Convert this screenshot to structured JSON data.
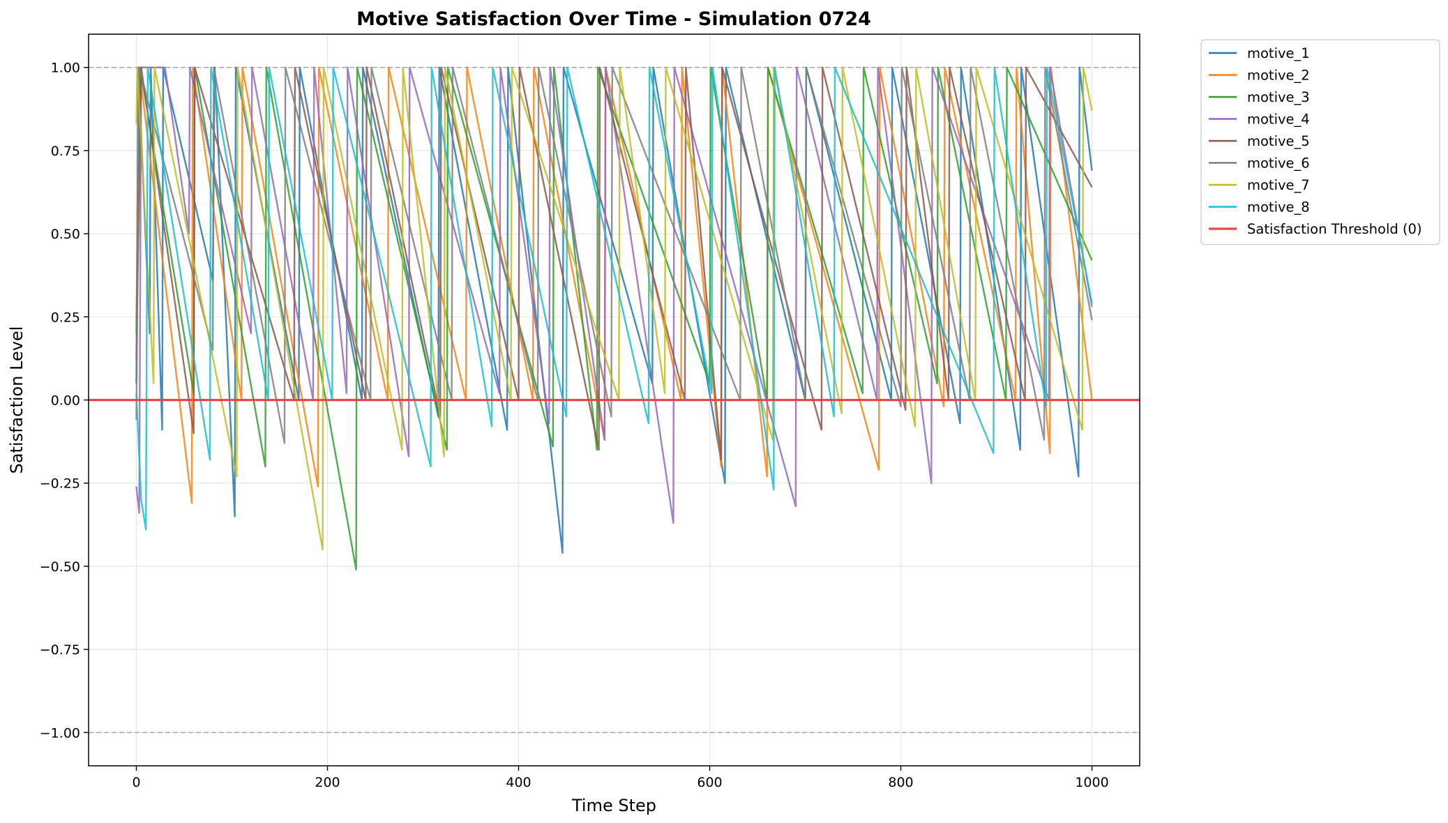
{
  "chart_data": {
    "type": "line",
    "title": "Motive Satisfaction Over Time - Simulation 0724",
    "xlabel": "Time Step",
    "ylabel": "Satisfaction Level",
    "xlim": [
      -50,
      1050
    ],
    "ylim": [
      -1.1,
      1.1
    ],
    "xticks": [
      0,
      200,
      400,
      600,
      800,
      1000
    ],
    "xtick_labels": [
      "0",
      "200",
      "400",
      "600",
      "800",
      "1000"
    ],
    "yticks": [
      1.0,
      0.75,
      0.5,
      0.25,
      0.0,
      -0.25,
      -0.5,
      -0.75,
      -1.0
    ],
    "ytick_labels": [
      "1.00",
      "0.75",
      "0.50",
      "0.25",
      "0.00",
      "−0.25",
      "−0.50",
      "−0.75",
      "−1.00"
    ],
    "grid": true,
    "legend_position": "outside-right-top",
    "reference_lines": [
      {
        "y": 1.0,
        "style": "dashed",
        "color": "#aaaaaa"
      },
      {
        "y": -1.0,
        "style": "dashed",
        "color": "#aaaaaa"
      }
    ],
    "threshold": {
      "name": "Satisfaction Threshold (0)",
      "y": 0,
      "color": "#e8474a"
    },
    "series": [
      {
        "name": "motive_1",
        "color": "#1f77b4",
        "points": [
          [
            0,
            0.05
          ],
          [
            2,
            1.0
          ],
          [
            14,
            0.2
          ],
          [
            15,
            1.0
          ],
          [
            27,
            -0.09
          ],
          [
            28,
            1.0
          ],
          [
            80,
            0.36
          ],
          [
            82,
            1.0
          ],
          [
            103,
            -0.35
          ],
          [
            104,
            1.0
          ],
          [
            170,
            0.0
          ],
          [
            171,
            1.0
          ],
          [
            236,
            0.0
          ],
          [
            237,
            1.0
          ],
          [
            316,
            -0.05
          ],
          [
            317,
            1.0
          ],
          [
            388,
            -0.09
          ],
          [
            389,
            1.0
          ],
          [
            446,
            -0.46
          ],
          [
            447,
            1.0
          ],
          [
            540,
            0.05
          ],
          [
            541,
            1.0
          ],
          [
            616,
            -0.25
          ],
          [
            617,
            1.0
          ],
          [
            700,
            0.0
          ],
          [
            701,
            1.0
          ],
          [
            790,
            0.0
          ],
          [
            791,
            1.0
          ],
          [
            862,
            -0.07
          ],
          [
            863,
            1.0
          ],
          [
            925,
            -0.15
          ],
          [
            926,
            1.0
          ],
          [
            986,
            -0.23
          ],
          [
            987,
            1.0
          ],
          [
            1000,
            0.69
          ]
        ]
      },
      {
        "name": "motive_2",
        "color": "#ff7f0e",
        "points": [
          [
            0,
            0.23
          ],
          [
            3,
            1.0
          ],
          [
            58,
            -0.31
          ],
          [
            59,
            1.0
          ],
          [
            110,
            0.0
          ],
          [
            111,
            1.0
          ],
          [
            190,
            -0.26
          ],
          [
            191,
            1.0
          ],
          [
            263,
            0.0
          ],
          [
            264,
            1.0
          ],
          [
            345,
            0.0
          ],
          [
            346,
            1.0
          ],
          [
            415,
            0.0
          ],
          [
            416,
            1.0
          ],
          [
            490,
            -0.12
          ],
          [
            491,
            1.0
          ],
          [
            570,
            0.0
          ],
          [
            571,
            1.0
          ],
          [
            612,
            -0.2
          ],
          [
            613,
            1.0
          ],
          [
            660,
            -0.23
          ],
          [
            661,
            1.0
          ],
          [
            777,
            -0.21
          ],
          [
            778,
            1.0
          ],
          [
            845,
            -0.02
          ],
          [
            846,
            1.0
          ],
          [
            920,
            0.0
          ],
          [
            921,
            1.0
          ],
          [
            956,
            -0.16
          ],
          [
            957,
            1.0
          ],
          [
            1000,
            0.0
          ]
        ]
      },
      {
        "name": "motive_3",
        "color": "#2ca02c",
        "points": [
          [
            0,
            0.2
          ],
          [
            4,
            1.0
          ],
          [
            60,
            0.02
          ],
          [
            61,
            1.0
          ],
          [
            135,
            -0.2
          ],
          [
            136,
            1.0
          ],
          [
            230,
            -0.51
          ],
          [
            231,
            1.0
          ],
          [
            325,
            -0.15
          ],
          [
            326,
            1.0
          ],
          [
            436,
            -0.14
          ],
          [
            437,
            1.0
          ],
          [
            482,
            -0.15
          ],
          [
            483,
            1.0
          ],
          [
            600,
            0.05
          ],
          [
            601,
            1.0
          ],
          [
            660,
            0.0
          ],
          [
            661,
            1.0
          ],
          [
            760,
            0.02
          ],
          [
            761,
            1.0
          ],
          [
            838,
            0.05
          ],
          [
            839,
            1.0
          ],
          [
            910,
            0.0
          ],
          [
            911,
            1.0
          ],
          [
            1000,
            0.42
          ]
        ]
      },
      {
        "name": "motive_4",
        "color": "#9467bd",
        "points": [
          [
            0,
            -0.26
          ],
          [
            3,
            -0.34
          ],
          [
            5,
            1.0
          ],
          [
            30,
            1.0
          ],
          [
            55,
            0.5
          ],
          [
            56,
            1.0
          ],
          [
            120,
            0.2
          ],
          [
            121,
            1.0
          ],
          [
            185,
            0.0
          ],
          [
            186,
            1.0
          ],
          [
            220,
            0.02
          ],
          [
            221,
            1.0
          ],
          [
            285,
            -0.17
          ],
          [
            286,
            1.0
          ],
          [
            380,
            0.02
          ],
          [
            381,
            1.0
          ],
          [
            432,
            -0.07
          ],
          [
            433,
            1.0
          ],
          [
            490,
            -0.12
          ],
          [
            491,
            1.0
          ],
          [
            562,
            -0.37
          ],
          [
            563,
            1.0
          ],
          [
            690,
            -0.32
          ],
          [
            691,
            1.0
          ],
          [
            775,
            0.0
          ],
          [
            776,
            1.0
          ],
          [
            832,
            -0.25
          ],
          [
            833,
            1.0
          ],
          [
            955,
            0.0
          ],
          [
            956,
            1.0
          ],
          [
            1000,
            0.28
          ]
        ]
      },
      {
        "name": "motive_5",
        "color": "#8c564b",
        "points": [
          [
            0,
            0.12
          ],
          [
            5,
            1.0
          ],
          [
            60,
            -0.1
          ],
          [
            61,
            1.0
          ],
          [
            165,
            0.0
          ],
          [
            166,
            1.0
          ],
          [
            240,
            0.0
          ],
          [
            241,
            1.0
          ],
          [
            318,
            -0.05
          ],
          [
            319,
            1.0
          ],
          [
            400,
            0.0
          ],
          [
            401,
            1.0
          ],
          [
            484,
            -0.15
          ],
          [
            485,
            1.0
          ],
          [
            574,
            0.0
          ],
          [
            575,
            1.0
          ],
          [
            612,
            -0.18
          ],
          [
            613,
            1.0
          ],
          [
            717,
            -0.09
          ],
          [
            718,
            1.0
          ],
          [
            805,
            -0.03
          ],
          [
            806,
            1.0
          ],
          [
            850,
            0.0
          ],
          [
            851,
            1.0
          ],
          [
            930,
            0.0
          ],
          [
            931,
            1.0
          ],
          [
            1000,
            0.64
          ]
        ]
      },
      {
        "name": "motive_6",
        "color": "#7f7f7f",
        "points": [
          [
            0,
            -0.06
          ],
          [
            3,
            1.0
          ],
          [
            80,
            0.15
          ],
          [
            81,
            1.0
          ],
          [
            155,
            -0.13
          ],
          [
            156,
            1.0
          ],
          [
            245,
            0.0
          ],
          [
            246,
            1.0
          ],
          [
            330,
            0.0
          ],
          [
            331,
            1.0
          ],
          [
            420,
            0.0
          ],
          [
            421,
            1.0
          ],
          [
            497,
            -0.05
          ],
          [
            498,
            1.0
          ],
          [
            632,
            0.0
          ],
          [
            633,
            1.0
          ],
          [
            700,
            0.0
          ],
          [
            701,
            1.0
          ],
          [
            800,
            -0.02
          ],
          [
            801,
            1.0
          ],
          [
            872,
            0.0
          ],
          [
            873,
            1.0
          ],
          [
            950,
            -0.12
          ],
          [
            951,
            1.0
          ],
          [
            1000,
            0.24
          ]
        ]
      },
      {
        "name": "motive_7",
        "color": "#bcbd22",
        "points": [
          [
            0,
            0.83
          ],
          [
            1,
            1.0
          ],
          [
            18,
            0.05
          ],
          [
            19,
            1.0
          ],
          [
            105,
            -0.23
          ],
          [
            106,
            1.0
          ],
          [
            195,
            -0.45
          ],
          [
            196,
            1.0
          ],
          [
            278,
            -0.15
          ],
          [
            279,
            1.0
          ],
          [
            322,
            -0.17
          ],
          [
            323,
            1.0
          ],
          [
            392,
            0.0
          ],
          [
            393,
            1.0
          ],
          [
            505,
            0.0
          ],
          [
            506,
            1.0
          ],
          [
            553,
            0.02
          ],
          [
            554,
            1.0
          ],
          [
            666,
            -0.12
          ],
          [
            667,
            1.0
          ],
          [
            738,
            -0.04
          ],
          [
            739,
            1.0
          ],
          [
            815,
            -0.08
          ],
          [
            816,
            1.0
          ],
          [
            878,
            0.0
          ],
          [
            879,
            1.0
          ],
          [
            990,
            -0.09
          ],
          [
            991,
            1.0
          ],
          [
            1000,
            0.87
          ]
        ]
      },
      {
        "name": "motive_8",
        "color": "#17becf",
        "points": [
          [
            0,
            0.02
          ],
          [
            5,
            -0.3
          ],
          [
            10,
            -0.39
          ],
          [
            12,
            1.0
          ],
          [
            77,
            -0.18
          ],
          [
            78,
            1.0
          ],
          [
            138,
            0.0
          ],
          [
            139,
            1.0
          ],
          [
            205,
            0.0
          ],
          [
            206,
            1.0
          ],
          [
            308,
            -0.2
          ],
          [
            309,
            1.0
          ],
          [
            372,
            -0.08
          ],
          [
            373,
            1.0
          ],
          [
            450,
            -0.05
          ],
          [
            451,
            1.0
          ],
          [
            536,
            -0.07
          ],
          [
            537,
            1.0
          ],
          [
            602,
            0.02
          ],
          [
            603,
            1.0
          ],
          [
            667,
            -0.27
          ],
          [
            668,
            1.0
          ],
          [
            730,
            -0.05
          ],
          [
            731,
            1.0
          ],
          [
            897,
            -0.16
          ],
          [
            898,
            1.0
          ],
          [
            952,
            -0.02
          ],
          [
            953,
            1.0
          ],
          [
            1000,
            0.29
          ]
        ]
      }
    ]
  }
}
